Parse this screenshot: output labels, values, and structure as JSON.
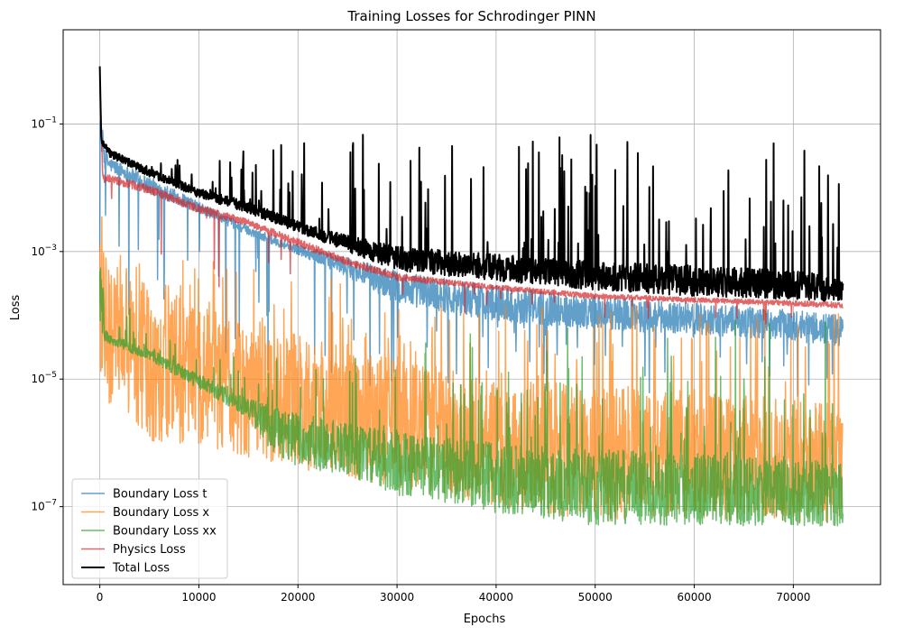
{
  "chart_data": {
    "type": "line",
    "title": "Training Losses for Schrodinger PINN",
    "xlabel": "Epochs",
    "ylabel": "Loss",
    "xlim": [
      -3700,
      78800
    ],
    "ylim": [
      6e-09,
      3.0
    ],
    "yscale": "log",
    "grid": true,
    "legend_position": "lower-left",
    "x_ticks": [
      {
        "value": 0,
        "label": "0"
      },
      {
        "value": 10000,
        "label": "10000"
      },
      {
        "value": 20000,
        "label": "20000"
      },
      {
        "value": 30000,
        "label": "30000"
      },
      {
        "value": 40000,
        "label": "40000"
      },
      {
        "value": 50000,
        "label": "50000"
      },
      {
        "value": 60000,
        "label": "60000"
      },
      {
        "value": 70000,
        "label": "70000"
      }
    ],
    "y_ticks": [
      {
        "value": 1e-07,
        "base": "10",
        "exp": "−7"
      },
      {
        "value": 1e-05,
        "base": "10",
        "exp": "−5"
      },
      {
        "value": 0.001,
        "base": "10",
        "exp": "−3"
      },
      {
        "value": 0.1,
        "base": "10",
        "exp": "−1"
      }
    ],
    "series": [
      {
        "name": "Boundary Loss t",
        "color": "#1f77b4",
        "alpha": 0.7,
        "lw": 1.5,
        "band_low": [
          [
            0,
            0.05
          ],
          [
            500,
            0.02
          ],
          [
            1000,
            0.018
          ],
          [
            5000,
            0.008
          ],
          [
            10000,
            0.004
          ],
          [
            15000,
            0.0018
          ],
          [
            20000,
            0.0009
          ],
          [
            25000,
            0.0004
          ],
          [
            30000,
            0.00015
          ],
          [
            40000,
            8e-05
          ],
          [
            50000,
            6e-05
          ],
          [
            60000,
            5e-05
          ],
          [
            70000,
            4e-05
          ],
          [
            75000,
            3e-05
          ]
        ],
        "band_high": [
          [
            0,
            0.2
          ],
          [
            500,
            0.04
          ],
          [
            1000,
            0.03
          ],
          [
            5000,
            0.015
          ],
          [
            10000,
            0.006
          ],
          [
            15000,
            0.0025
          ],
          [
            20000,
            0.0013
          ],
          [
            25000,
            0.0008
          ],
          [
            30000,
            0.0005
          ],
          [
            40000,
            0.0003
          ],
          [
            50000,
            0.0002
          ],
          [
            60000,
            0.00016
          ],
          [
            70000,
            0.00012
          ],
          [
            75000,
            0.0001
          ]
        ],
        "spike_floor": [
          [
            0,
            1e-05
          ],
          [
            20000,
            8e-06
          ],
          [
            75000,
            5e-06
          ]
        ],
        "spike_rate": 0.03
      },
      {
        "name": "Boundary Loss x",
        "color": "#ff7f0e",
        "alpha": 0.7,
        "lw": 1.5,
        "band_low": [
          [
            0,
            1e-05
          ],
          [
            500,
            4e-06
          ],
          [
            2000,
            3e-06
          ],
          [
            5000,
            1e-06
          ],
          [
            10000,
            8e-07
          ],
          [
            15000,
            6e-07
          ],
          [
            20000,
            4e-07
          ],
          [
            30000,
            2e-07
          ],
          [
            40000,
            1e-07
          ],
          [
            50000,
            6e-08
          ],
          [
            60000,
            6e-08
          ],
          [
            70000,
            6e-08
          ],
          [
            75000,
            5e-08
          ]
        ],
        "band_high": [
          [
            0,
            0.05
          ],
          [
            300,
            0.001
          ],
          [
            2000,
            0.0006
          ],
          [
            5000,
            0.0003
          ],
          [
            10000,
            0.00015
          ],
          [
            15000,
            8e-05
          ],
          [
            20000,
            5e-05
          ],
          [
            30000,
            2e-05
          ],
          [
            40000,
            1e-05
          ],
          [
            50000,
            8e-06
          ],
          [
            60000,
            6e-06
          ],
          [
            70000,
            5e-06
          ],
          [
            75000,
            4e-06
          ]
        ],
        "spike_ceiling": [
          [
            0,
            0.001
          ],
          [
            10000,
            0.0008
          ],
          [
            20000,
            0.0005
          ],
          [
            30000,
            0.0003
          ],
          [
            40000,
            0.0002
          ],
          [
            50000,
            0.00015
          ],
          [
            60000,
            0.00013
          ],
          [
            75000,
            0.00012
          ]
        ],
        "spike_rate": 0.05
      },
      {
        "name": "Boundary Loss xx",
        "color": "#2ca02c",
        "alpha": 0.7,
        "lw": 1.5,
        "band_low": [
          [
            0,
            3e-05
          ],
          [
            500,
            4e-05
          ],
          [
            1000,
            3.5e-05
          ],
          [
            5000,
            2e-05
          ],
          [
            10000,
            7e-06
          ],
          [
            15000,
            2.5e-06
          ],
          [
            17000,
            8e-07
          ],
          [
            20000,
            4e-07
          ],
          [
            25000,
            3e-07
          ],
          [
            30000,
            1.5e-07
          ],
          [
            40000,
            8e-08
          ],
          [
            50000,
            5e-08
          ],
          [
            60000,
            5e-08
          ],
          [
            70000,
            5e-08
          ],
          [
            75000,
            5e-08
          ]
        ],
        "band_high": [
          [
            0,
            0.0008
          ],
          [
            500,
            6e-05
          ],
          [
            1000,
            5e-05
          ],
          [
            5000,
            3e-05
          ],
          [
            10000,
            1.2e-05
          ],
          [
            15000,
            5e-06
          ],
          [
            20000,
            3e-06
          ],
          [
            25000,
            2e-06
          ],
          [
            30000,
            1.5e-06
          ],
          [
            40000,
            1e-06
          ],
          [
            50000,
            8e-07
          ],
          [
            60000,
            7e-07
          ],
          [
            70000,
            6e-07
          ],
          [
            75000,
            5e-07
          ]
        ],
        "spike_ceiling": [
          [
            0,
            0.0003
          ],
          [
            10000,
            2e-05
          ],
          [
            20000,
            3e-05
          ],
          [
            30000,
            5e-05
          ],
          [
            40000,
            8e-05
          ],
          [
            50000,
            0.0001
          ],
          [
            60000,
            0.0001
          ],
          [
            75000,
            0.0001
          ]
        ],
        "spike_rate": 0.05
      },
      {
        "name": "Physics Loss",
        "color": "#d62728",
        "alpha": 0.7,
        "lw": 1.5,
        "band_low": [
          [
            0,
            0.5
          ],
          [
            300,
            0.012
          ],
          [
            1000,
            0.012
          ],
          [
            5000,
            0.008
          ],
          [
            10000,
            0.004
          ],
          [
            15000,
            0.0025
          ],
          [
            20000,
            0.0012
          ],
          [
            25000,
            0.0006
          ],
          [
            30000,
            0.00035
          ],
          [
            40000,
            0.00025
          ],
          [
            50000,
            0.00018
          ],
          [
            60000,
            0.00016
          ],
          [
            70000,
            0.00014
          ],
          [
            75000,
            0.00013
          ]
        ],
        "band_high": [
          [
            0,
            0.5
          ],
          [
            300,
            0.016
          ],
          [
            1000,
            0.016
          ],
          [
            5000,
            0.011
          ],
          [
            10000,
            0.0055
          ],
          [
            15000,
            0.0032
          ],
          [
            20000,
            0.0016
          ],
          [
            25000,
            0.0008
          ],
          [
            30000,
            0.00045
          ],
          [
            40000,
            0.0003
          ],
          [
            50000,
            0.00022
          ],
          [
            60000,
            0.00019
          ],
          [
            70000,
            0.00017
          ],
          [
            75000,
            0.00016
          ]
        ],
        "spike_floor": [
          [
            0,
            0.0002
          ],
          [
            75000,
            5e-05
          ]
        ],
        "spike_rate": 0.01
      },
      {
        "name": "Total Loss",
        "color": "#000000",
        "alpha": 1.0,
        "lw": 2,
        "band_low": [
          [
            0,
            0.8
          ],
          [
            150,
            0.05
          ],
          [
            1000,
            0.03
          ],
          [
            5000,
            0.015
          ],
          [
            10000,
            0.007
          ],
          [
            15000,
            0.004
          ],
          [
            20000,
            0.002
          ],
          [
            25000,
            0.001
          ],
          [
            30000,
            0.0005
          ],
          [
            40000,
            0.00035
          ],
          [
            50000,
            0.00025
          ],
          [
            60000,
            0.0002
          ],
          [
            70000,
            0.00018
          ],
          [
            75000,
            0.00016
          ]
        ],
        "band_high": [
          [
            0,
            0.8
          ],
          [
            150,
            0.06
          ],
          [
            1000,
            0.04
          ],
          [
            5000,
            0.02
          ],
          [
            10000,
            0.01
          ],
          [
            15000,
            0.006
          ],
          [
            20000,
            0.003
          ],
          [
            25000,
            0.0018
          ],
          [
            30000,
            0.0012
          ],
          [
            40000,
            0.0009
          ],
          [
            50000,
            0.0007
          ],
          [
            60000,
            0.0006
          ],
          [
            70000,
            0.0005
          ],
          [
            75000,
            0.0004
          ]
        ],
        "spike_ceiling": [
          [
            0,
            0.02
          ],
          [
            10000,
            0.03
          ],
          [
            25000,
            0.1
          ],
          [
            40000,
            0.05
          ],
          [
            55000,
            0.1
          ],
          [
            75000,
            0.05
          ]
        ],
        "spike_rate": 0.06
      }
    ]
  }
}
